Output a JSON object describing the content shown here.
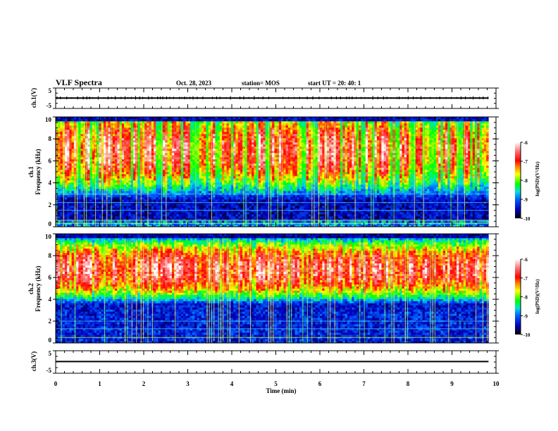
{
  "header": {
    "title": "VLF Spectra",
    "date": "Oct. 28, 2023",
    "station": "station= MOS",
    "start": "start  UT =   20: 40: 1"
  },
  "chart_data": [
    {
      "type": "line",
      "panel": "ch1-waveform",
      "ylabel": "ch.1(V)",
      "ylim": [
        -5,
        5
      ],
      "yticks": [
        "5",
        "-5"
      ],
      "xlim": [
        0,
        9.83
      ],
      "series": [
        {
          "name": "ch.1 voltage",
          "level": 0.1,
          "noise": "small spikes"
        }
      ]
    },
    {
      "type": "heatmap",
      "panel": "ch1-spectrogram",
      "ylabel": "ch.1\nFrequency (kHz)",
      "ylabel_line1": "ch.1",
      "ylabel_line2": "Frequency (kHz)",
      "ylim": [
        0,
        10
      ],
      "yticks": [
        "0",
        "2",
        "4",
        "6",
        "8",
        "10"
      ],
      "xlim": [
        0,
        9.83
      ],
      "description": "Broadband bursts from ~0.5 to ~9.5 kHz, strongest (log PSD -7 to -6) between 5 and 9 kHz; narrowband horizontal lines near 0.3, 1.5, 2.2, 3 kHz",
      "band_peak_khz": [
        5,
        9
      ],
      "colorbar": {
        "label": "log(PSD)(V²/Hz)",
        "range": [
          -10,
          -6
        ],
        "ticks": [
          "-6",
          "-7",
          "-8",
          "-9",
          "-10"
        ]
      }
    },
    {
      "type": "heatmap",
      "panel": "ch2-spectrogram",
      "ylabel": "ch.2\nFrequency (kHz)",
      "ylabel_line1": "ch.2",
      "ylabel_line2": "Frequency (kHz)",
      "ylim": [
        0,
        10
      ],
      "yticks": [
        "0",
        "2",
        "4",
        "6",
        "8",
        "10"
      ],
      "xlim": [
        0,
        9.83
      ],
      "description": "Persistent band from ~4 to ~9 kHz, peak around 6-8 kHz (log PSD -7 to -6)",
      "band_peak_khz": [
        5.5,
        8
      ],
      "colorbar": {
        "label": "log(PSD)(V²/Hz)",
        "range": [
          -10,
          -6
        ],
        "ticks": [
          "-6",
          "-7",
          "-8",
          "-9",
          "-10"
        ]
      }
    },
    {
      "type": "line",
      "panel": "ch3-waveform",
      "ylabel": "ch.3(V)",
      "ylim": [
        -5,
        5
      ],
      "yticks": [
        "5",
        "-5"
      ],
      "xlim": [
        0,
        9.83
      ],
      "series": [
        {
          "name": "ch.3 voltage",
          "level": 0.2
        }
      ]
    }
  ],
  "xaxis": {
    "label": "Time  (min)",
    "range": [
      0,
      10
    ],
    "ticks": [
      "0",
      "1",
      "2",
      "3",
      "4",
      "5",
      "6",
      "7",
      "8",
      "9",
      "10"
    ]
  },
  "colors": {
    "colormap": [
      "#000000",
      "#0000ff",
      "#00c0ff",
      "#00ff00",
      "#ffff00",
      "#ff0000",
      "#ffffff"
    ]
  }
}
